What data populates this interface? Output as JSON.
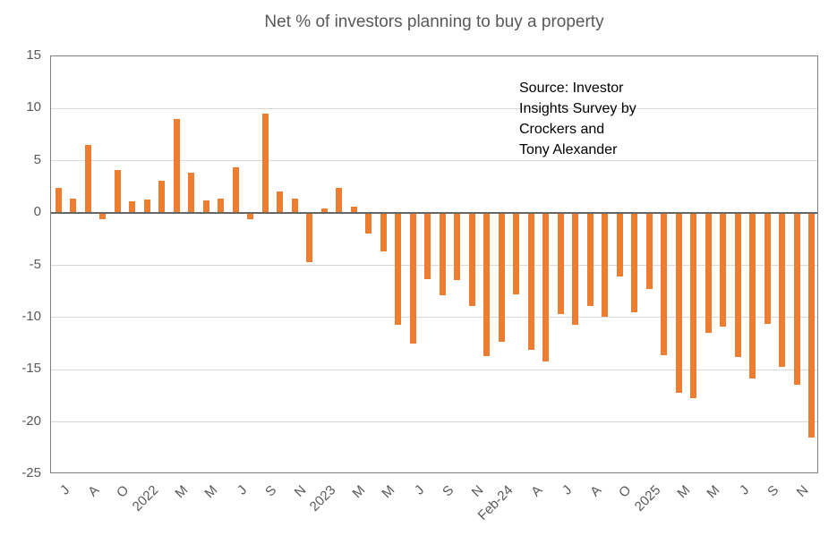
{
  "chart_data": {
    "type": "bar",
    "title": "Net % of investors planning to buy a property",
    "xlabel": "",
    "ylabel": "",
    "ylim": [
      -25,
      15
    ],
    "ytick_interval": 5,
    "yticks": [
      15,
      10,
      5,
      0,
      -5,
      -10,
      -15,
      -20,
      -25
    ],
    "grid": true,
    "legend": false,
    "categories": [
      "J",
      "",
      "A",
      "",
      "O",
      "",
      "2022",
      "",
      "M",
      "",
      "M",
      "",
      "J",
      "",
      "S",
      "",
      "N",
      "",
      "2023",
      "",
      "M",
      "",
      "M",
      "",
      "J",
      "",
      "S",
      "",
      "N",
      "",
      "Feb-24",
      "",
      "A",
      "",
      "J",
      "",
      "A",
      "",
      "O",
      "",
      "2025",
      "",
      "M",
      "",
      "M",
      "",
      "J",
      "",
      "S",
      "",
      "N",
      "",
      ""
    ],
    "values": [
      2.4,
      1.4,
      6.5,
      -0.6,
      4.1,
      1.1,
      1.3,
      3.1,
      9.0,
      3.9,
      1.2,
      1.4,
      4.4,
      -0.6,
      9.5,
      2.1,
      1.4,
      -4.7,
      0.4,
      2.4,
      0.6,
      -2.0,
      -3.7,
      -10.7,
      -12.5,
      -6.3,
      -7.9,
      -6.4,
      -8.9,
      -13.7,
      -12.3,
      -7.8,
      -13.1,
      -14.2,
      -9.7,
      -10.7,
      -8.9,
      -9.9,
      -6.1,
      -9.5,
      -7.3,
      -13.6,
      -17.2,
      -17.7,
      -11.5,
      -10.9,
      -13.8,
      -15.8,
      -10.6,
      -14.7,
      -16.4,
      -21.5
    ],
    "annotation": {
      "lines": [
        "Source: Investor",
        "Insights Survey by",
        "Crockers and",
        "Tony Alexander"
      ]
    }
  },
  "colors": {
    "bar": "#ED7D31",
    "title_text": "#595959",
    "axis_text": "#595959",
    "gridline": "#D9D9D9",
    "plot_border": "#7F7F7F",
    "zero_line": "#666666",
    "annotation_text": "#000000",
    "background": "#FFFFFF"
  }
}
